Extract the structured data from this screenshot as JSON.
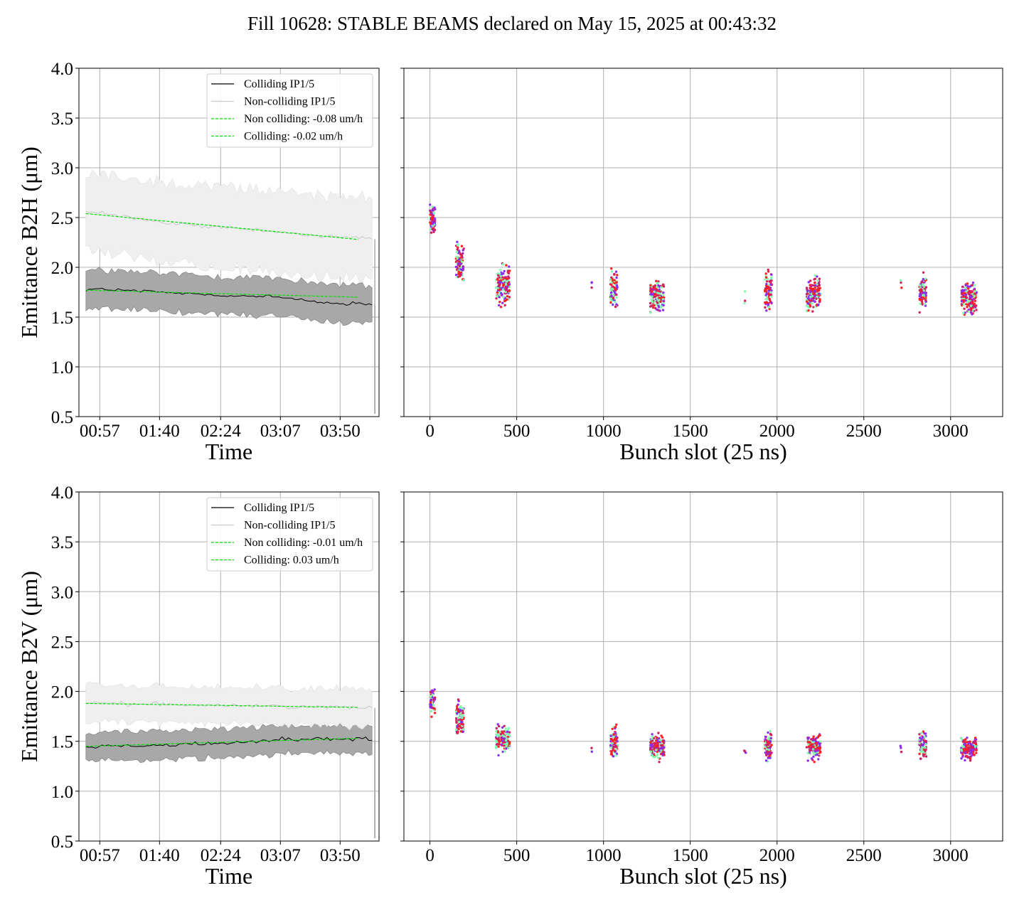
{
  "title": "Fill 10628: STABLE BEAMS declared on May 15, 2025 at 00:43:32",
  "chart_data": [
    {
      "type": "line",
      "panel": "top-left",
      "ylabel": "Emittance B2H (μm)",
      "xlabel": "Time",
      "ylim": [
        0.5,
        4.0
      ],
      "yticks": [
        "0.5",
        "1.0",
        "1.5",
        "2.0",
        "2.5",
        "3.0",
        "3.5",
        "4.0"
      ],
      "xticks": [
        "00:57",
        "01:40",
        "02:24",
        "03:07",
        "03:50"
      ],
      "grid": true,
      "legend_placement": "top-right",
      "legend": [
        "Colliding IP1/5",
        "Non-colliding IP1/5",
        "Non colliding: -0.08 um/h",
        "Colliding: -0.02 um/h"
      ],
      "series": [
        {
          "name": "Colliding IP1/5",
          "color": "#000000",
          "x": [
            "00:57",
            "01:40",
            "02:24",
            "03:07",
            "03:50"
          ],
          "values": [
            1.78,
            1.75,
            1.72,
            1.7,
            1.63
          ],
          "band": [
            1.6,
            1.98
          ]
        },
        {
          "name": "Non-colliding IP1/5",
          "color": "#c8c8c8",
          "x": [
            "00:57",
            "01:40",
            "02:24",
            "03:07",
            "03:50"
          ],
          "values": [
            2.55,
            2.45,
            2.4,
            2.35,
            2.3
          ],
          "band": [
            2.05,
            2.85
          ]
        },
        {
          "name": "Non colliding: -0.08 um/h",
          "color": "#00e000",
          "dashed": true,
          "x": [
            "00:47",
            "04:03"
          ],
          "values": [
            2.54,
            2.28
          ]
        },
        {
          "name": "Colliding: -0.02 um/h",
          "color": "#00e000",
          "dashed": true,
          "x": [
            "00:47",
            "04:03"
          ],
          "values": [
            1.77,
            1.7
          ]
        }
      ]
    },
    {
      "type": "scatter",
      "panel": "top-right",
      "xlabel": "Bunch slot (25 ns)",
      "ylim": [
        0.5,
        4.0
      ],
      "xlim": [
        -150,
        3300
      ],
      "xticks": [
        "0",
        "500",
        "1000",
        "1500",
        "2000",
        "2500",
        "3000"
      ],
      "grid": true,
      "groups": [
        {
          "x": [
            0,
            30
          ],
          "center": 2.5,
          "spread": 0.15
        },
        {
          "x": [
            150,
            195
          ],
          "center": 2.05,
          "spread": 0.2
        },
        {
          "x": [
            380,
            460
          ],
          "center": 1.82,
          "spread": 0.2
        },
        {
          "x": [
            930,
            935
          ],
          "center": 1.83,
          "spread": 0.06
        },
        {
          "x": [
            1040,
            1080
          ],
          "center": 1.78,
          "spread": 0.2
        },
        {
          "x": [
            1270,
            1350
          ],
          "center": 1.72,
          "spread": 0.15
        },
        {
          "x": [
            1810,
            1820
          ],
          "center": 1.7,
          "spread": 0.2
        },
        {
          "x": [
            1930,
            1970
          ],
          "center": 1.76,
          "spread": 0.2
        },
        {
          "x": [
            2170,
            2250
          ],
          "center": 1.72,
          "spread": 0.17
        },
        {
          "x": [
            2710,
            2720
          ],
          "center": 1.8,
          "spread": 0.15
        },
        {
          "x": [
            2820,
            2860
          ],
          "center": 1.75,
          "spread": 0.17
        },
        {
          "x": [
            3060,
            3150
          ],
          "center": 1.7,
          "spread": 0.15
        }
      ]
    },
    {
      "type": "line",
      "panel": "bottom-left",
      "ylabel": "Emittance B2V (μm)",
      "xlabel": "Time",
      "ylim": [
        0.5,
        4.0
      ],
      "yticks": [
        "0.5",
        "1.0",
        "1.5",
        "2.0",
        "2.5",
        "3.0",
        "3.5",
        "4.0"
      ],
      "xticks": [
        "00:57",
        "01:40",
        "02:24",
        "03:07",
        "03:50"
      ],
      "grid": true,
      "legend_placement": "top-right",
      "legend": [
        "Colliding IP1/5",
        "Non-colliding IP1/5",
        "Non colliding: -0.01 um/h",
        "Colliding: 0.03 um/h"
      ],
      "series": [
        {
          "name": "Colliding IP1/5",
          "color": "#000000",
          "x": [
            "00:57",
            "01:40",
            "02:24",
            "03:07",
            "03:50"
          ],
          "values": [
            1.45,
            1.46,
            1.48,
            1.52,
            1.52
          ],
          "band": [
            1.33,
            1.62
          ]
        },
        {
          "name": "Non-colliding IP1/5",
          "color": "#c8c8c8",
          "x": [
            "00:57",
            "01:40",
            "02:24",
            "03:07",
            "03:50"
          ],
          "values": [
            1.88,
            1.87,
            1.86,
            1.85,
            1.84
          ],
          "band": [
            1.68,
            2.05
          ]
        },
        {
          "name": "Non colliding: -0.01 um/h",
          "color": "#00e000",
          "dashed": true,
          "x": [
            "00:47",
            "04:03"
          ],
          "values": [
            1.88,
            1.84
          ]
        },
        {
          "name": "Colliding: 0.03 um/h",
          "color": "#00e000",
          "dashed": true,
          "x": [
            "00:47",
            "04:03"
          ],
          "values": [
            1.45,
            1.53
          ]
        }
      ]
    },
    {
      "type": "scatter",
      "panel": "bottom-right",
      "xlabel": "Bunch slot (25 ns)",
      "ylim": [
        0.5,
        4.0
      ],
      "xlim": [
        -150,
        3300
      ],
      "xticks": [
        "0",
        "500",
        "1000",
        "1500",
        "2000",
        "2500",
        "3000"
      ],
      "grid": true,
      "groups": [
        {
          "x": [
            0,
            30
          ],
          "center": 1.9,
          "spread": 0.12
        },
        {
          "x": [
            150,
            195
          ],
          "center": 1.73,
          "spread": 0.15
        },
        {
          "x": [
            380,
            460
          ],
          "center": 1.52,
          "spread": 0.12
        },
        {
          "x": [
            930,
            935
          ],
          "center": 1.42,
          "spread": 0.06
        },
        {
          "x": [
            1040,
            1080
          ],
          "center": 1.47,
          "spread": 0.15
        },
        {
          "x": [
            1270,
            1350
          ],
          "center": 1.45,
          "spread": 0.12
        },
        {
          "x": [
            1810,
            1820
          ],
          "center": 1.38,
          "spread": 0.04
        },
        {
          "x": [
            1930,
            1970
          ],
          "center": 1.45,
          "spread": 0.15
        },
        {
          "x": [
            2170,
            2250
          ],
          "center": 1.45,
          "spread": 0.12
        },
        {
          "x": [
            2710,
            2720
          ],
          "center": 1.42,
          "spread": 0.06
        },
        {
          "x": [
            2820,
            2860
          ],
          "center": 1.45,
          "spread": 0.12
        },
        {
          "x": [
            3060,
            3150
          ],
          "center": 1.43,
          "spread": 0.1
        }
      ]
    }
  ],
  "colors": {
    "scatter": [
      "#8b2cf0",
      "#ff2020",
      "#80ffb0",
      "#d02060"
    ],
    "fit": "#00e000",
    "colliding": "#000000",
    "noncolliding": "#c8c8c8"
  }
}
